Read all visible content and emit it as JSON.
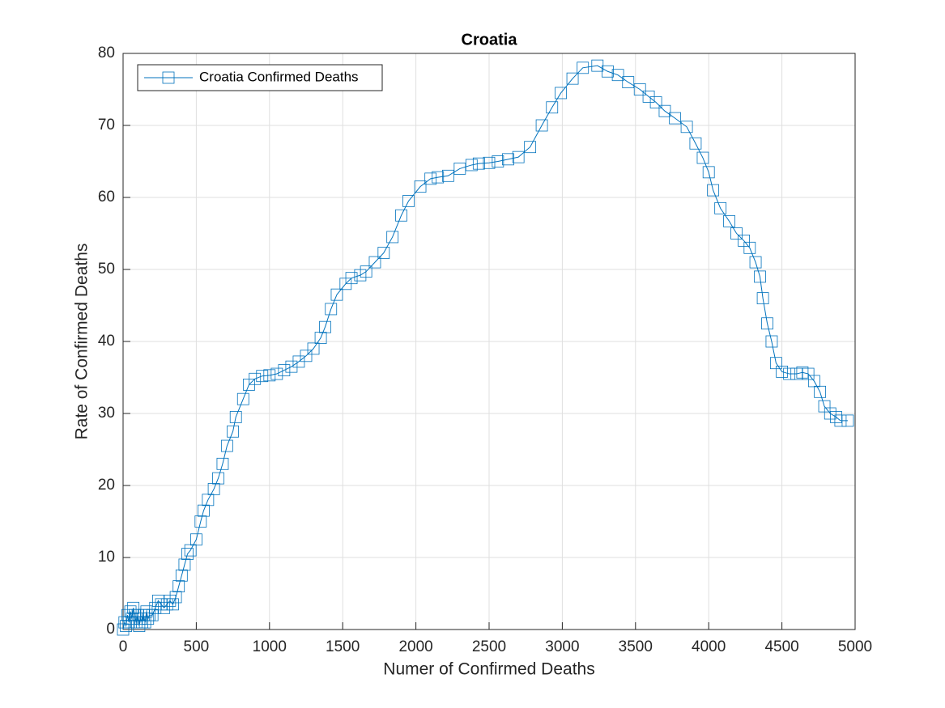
{
  "chart_data": {
    "type": "line",
    "title": "Croatia",
    "x_label": "Numer of Confirmed Deaths",
    "y_label": "Rate of Confirmed Deaths",
    "x": [
      0,
      10,
      20,
      30,
      40,
      50,
      60,
      70,
      80,
      90,
      100,
      110,
      120,
      130,
      140,
      150,
      160,
      170,
      180,
      200,
      220,
      240,
      260,
      280,
      300,
      320,
      340,
      360,
      380,
      400,
      420,
      440,
      460,
      500,
      530,
      550,
      580,
      620,
      650,
      680,
      710,
      750,
      770,
      820,
      860,
      900,
      950,
      1000,
      1050,
      1100,
      1150,
      1200,
      1250,
      1300,
      1350,
      1380,
      1420,
      1460,
      1520,
      1560,
      1620,
      1660,
      1720,
      1780,
      1840,
      1900,
      1950,
      2030,
      2100,
      2150,
      2220,
      2300,
      2380,
      2430,
      2500,
      2560,
      2630,
      2700,
      2780,
      2860,
      2930,
      2990,
      3070,
      3140,
      3240,
      3310,
      3380,
      3450,
      3530,
      3590,
      3640,
      3700,
      3770,
      3850,
      3910,
      3960,
      4000,
      4030,
      4080,
      4140,
      4190,
      4240,
      4280,
      4320,
      4350,
      4370,
      4400,
      4430,
      4460,
      4500,
      4550,
      4600,
      4640,
      4680,
      4720,
      4760,
      4790,
      4830,
      4870,
      4900,
      4950
    ],
    "series": [
      {
        "name": "Croatia Confirmed Deaths",
        "color": "#0072bd",
        "values": [
          0,
          1,
          0.5,
          2,
          1,
          2.5,
          1.5,
          3,
          2,
          1,
          2,
          0.5,
          1.5,
          1,
          2,
          1,
          2.5,
          1.5,
          2,
          2,
          3,
          4,
          3.5,
          3,
          3.5,
          4,
          3.5,
          4.5,
          6,
          7.5,
          9,
          10.5,
          11,
          12.5,
          15,
          16.5,
          18,
          19.5,
          21,
          23,
          25.5,
          27.5,
          29.5,
          32,
          34,
          34.8,
          35.2,
          35.3,
          35.5,
          36,
          36.5,
          37.2,
          38,
          39,
          40.5,
          42,
          44.5,
          46.5,
          48,
          48.8,
          49.2,
          49.7,
          51,
          52.3,
          54.5,
          57.5,
          59.5,
          61.5,
          62.6,
          62.8,
          63,
          64,
          64.5,
          64.7,
          64.8,
          65,
          65.3,
          65.6,
          67,
          70,
          72.5,
          74.5,
          76.5,
          78,
          78.3,
          77.5,
          77,
          76,
          75,
          74,
          73.2,
          72,
          71,
          69.8,
          67.5,
          65.5,
          63.5,
          61,
          58.5,
          56.7,
          55,
          54,
          53,
          51,
          49,
          46,
          42.5,
          40,
          37,
          35.8,
          35.5,
          35.5,
          35.7,
          35.5,
          34.5,
          33,
          31,
          30,
          29.5,
          29,
          29
        ]
      }
    ],
    "xlim": [
      0,
      5000
    ],
    "xticks": [
      0,
      500,
      1000,
      1500,
      2000,
      2500,
      3000,
      3500,
      4000,
      4500,
      5000
    ],
    "ylim": [
      0,
      80
    ],
    "yticks": [
      0,
      10,
      20,
      30,
      40,
      50,
      60,
      70,
      80
    ],
    "grid": true,
    "legend": "northwest"
  }
}
